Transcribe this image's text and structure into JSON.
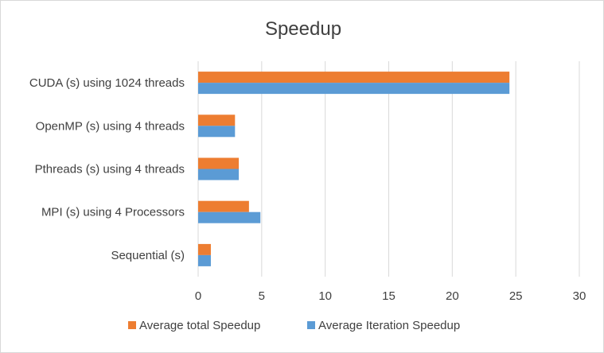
{
  "chart_data": {
    "type": "bar",
    "orientation": "horizontal",
    "title": "Speedup",
    "categories": [
      "CUDA (s) using 1024 threads",
      "OpenMP (s) using 4 threads",
      "Pthreads (s) using 4 threads",
      "MPI (s) using 4 Processors",
      "Sequential (s)"
    ],
    "series": [
      {
        "name": "Average total Speedup",
        "color": "#ed7d31",
        "values": [
          24.5,
          2.9,
          3.2,
          4.0,
          1.0
        ]
      },
      {
        "name": "Average Iteration Speedup",
        "color": "#5b9bd5",
        "values": [
          24.5,
          2.9,
          3.2,
          4.9,
          1.0
        ]
      }
    ],
    "xlim": [
      0,
      30
    ],
    "xticks": [
      "0",
      "5",
      "10",
      "15",
      "20",
      "25",
      "30"
    ],
    "grid": "vertical",
    "legend_position": "bottom"
  }
}
